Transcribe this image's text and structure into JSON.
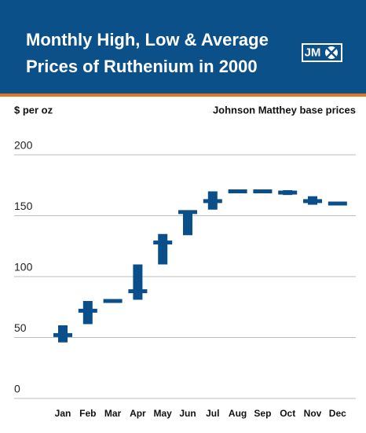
{
  "chart_data": {
    "type": "range",
    "title": [
      "Monthly High, Low & Average",
      "Prices of Ruthenium in 2000"
    ],
    "logo": "JM",
    "y_label": "$ per oz",
    "source": "Johnson Matthey base prices",
    "categories": [
      "Jan",
      "Feb",
      "Mar",
      "Apr",
      "May",
      "Jun",
      "Jul",
      "Aug",
      "Sep",
      "Oct",
      "Nov",
      "Dec"
    ],
    "high": [
      60,
      80,
      81,
      110,
      135,
      154,
      170,
      171,
      171,
      171,
      166,
      161
    ],
    "low": [
      46,
      61,
      79,
      81,
      110,
      134,
      155,
      170,
      169,
      167,
      159,
      159
    ],
    "average": [
      52,
      72,
      80,
      88,
      128,
      153,
      162,
      170,
      170,
      169,
      162,
      160
    ],
    "color": "#0b4f8a",
    "ylim": [
      0,
      200
    ],
    "yticks": [
      0,
      50,
      100,
      150,
      200
    ],
    "grid": true
  }
}
